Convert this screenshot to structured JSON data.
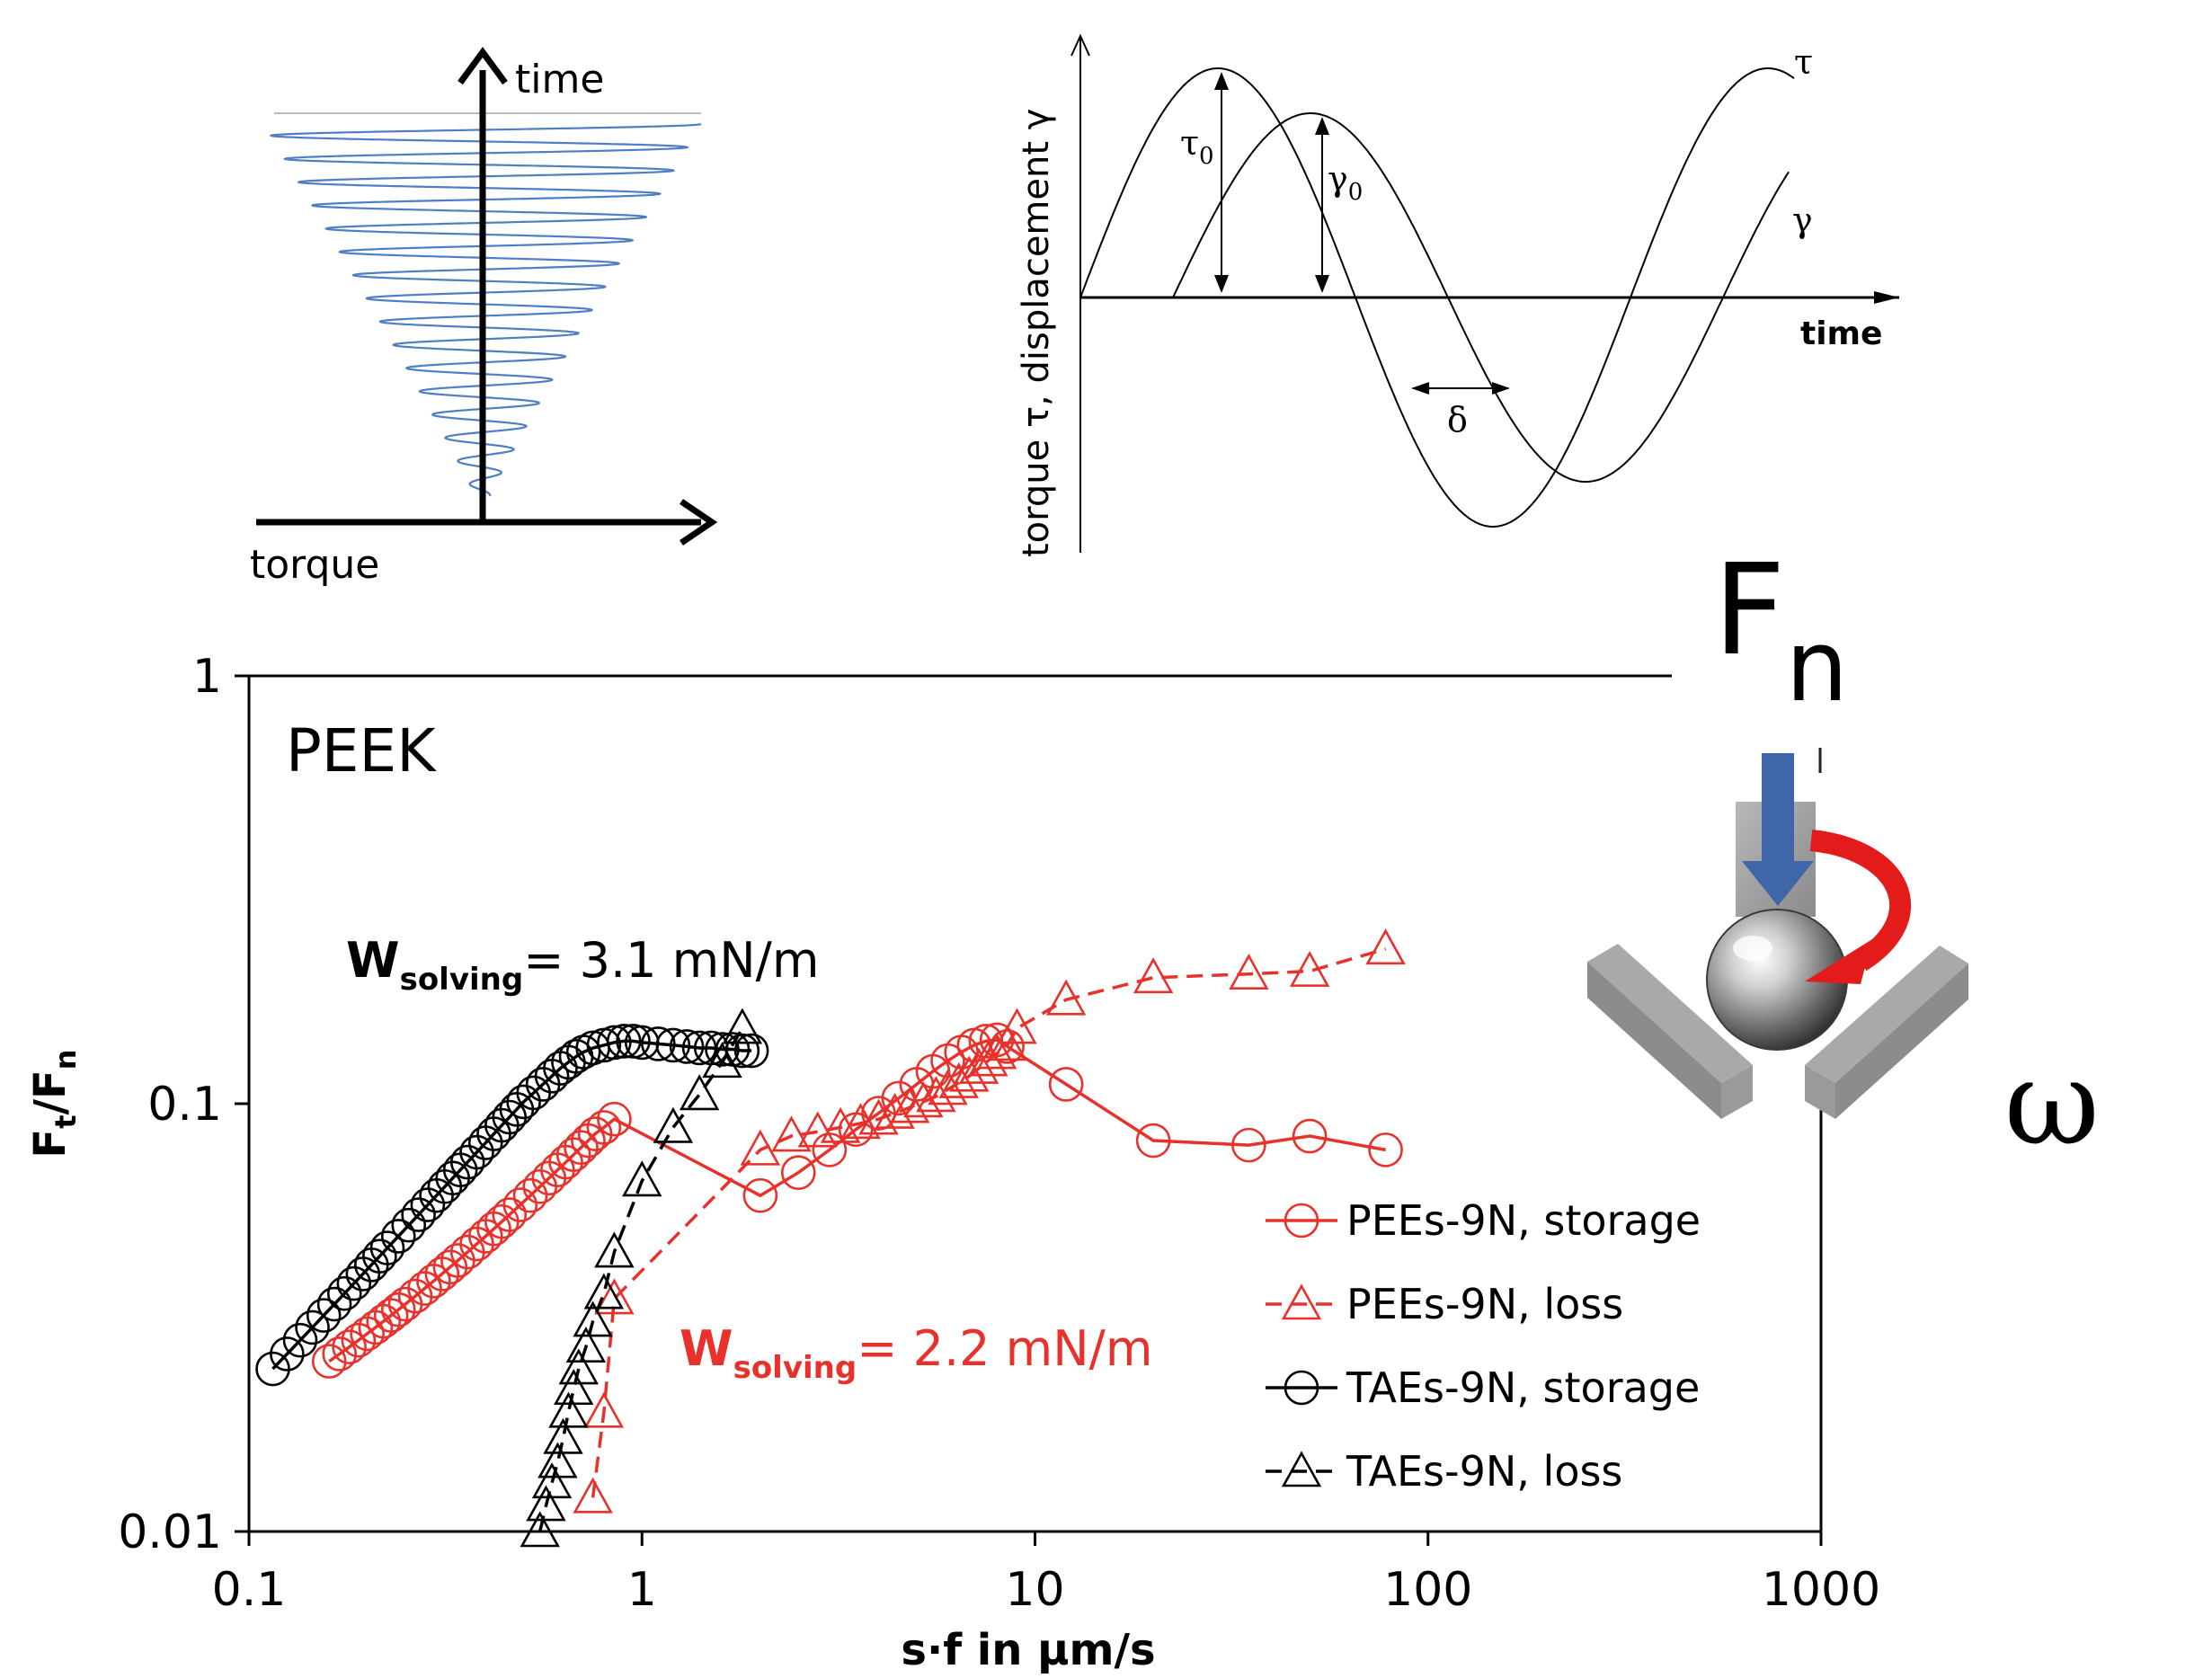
{
  "sweep_schematic": {
    "time_label": "time",
    "torque_label": "torque"
  },
  "oscillation_schematic": {
    "y_label": "torque τ, displacement γ",
    "time_label": "time",
    "tau_label": "τ",
    "gamma_label": "γ",
    "tau0_label": "τ",
    "tau0_sub": "0",
    "gamma0_label": "γ",
    "gamma0_sub": "0",
    "delta_label": "δ"
  },
  "setup_schematic": {
    "force_label": "F",
    "force_sub": "n",
    "omega_label": "ω"
  },
  "chart_data": {
    "type": "line",
    "panel_label": "PEEK",
    "x_scale": "log",
    "y_scale": "log",
    "xlim": [
      0.1,
      1000
    ],
    "ylim": [
      0.01,
      1
    ],
    "xlabel": "s·f in µm/s",
    "ylabel_main": "F",
    "ylabel_sub1": "t",
    "ylabel_mid": "/F",
    "ylabel_sub2": "n",
    "x_ticks": [
      0.1,
      1,
      10,
      100,
      1000
    ],
    "x_tick_labels": [
      "0.1",
      "1",
      "10",
      "100",
      "1000"
    ],
    "y_ticks": [
      0.01,
      0.1,
      1
    ],
    "y_tick_labels": [
      "0.01",
      "0.1",
      "1"
    ],
    "legend_position": "bottom-right",
    "annotations": [
      {
        "text_main": "W",
        "text_sub": "solving",
        "text_rest": "= 3.1 mN/m",
        "color": "#000000"
      },
      {
        "text_main": "W",
        "text_sub": "solving",
        "text_rest": "= 2.2 mN/m",
        "color": "#e8312b"
      }
    ],
    "series": [
      {
        "name": "PEEs-9N, storage",
        "color": "#e8312b",
        "marker": "circle",
        "dash": false,
        "x": [
          0.16,
          0.17,
          0.18,
          0.19,
          0.2,
          0.21,
          0.22,
          0.23,
          0.24,
          0.25,
          0.265,
          0.28,
          0.295,
          0.31,
          0.325,
          0.34,
          0.36,
          0.38,
          0.4,
          0.42,
          0.44,
          0.46,
          0.49,
          0.52,
          0.55,
          0.58,
          0.61,
          0.64,
          0.67,
          0.7,
          0.73,
          0.76,
          0.8,
          0.85,
          2.0,
          2.5,
          3.0,
          3.5,
          4.0,
          4.5,
          5.0,
          5.5,
          6.0,
          6.5,
          7.0,
          7.5,
          8.0,
          8.5,
          12,
          20,
          35,
          50,
          78
        ],
        "y": [
          0.025,
          0.026,
          0.027,
          0.028,
          0.029,
          0.03,
          0.031,
          0.032,
          0.033,
          0.034,
          0.0355,
          0.037,
          0.0385,
          0.04,
          0.0415,
          0.043,
          0.045,
          0.047,
          0.049,
          0.051,
          0.053,
          0.055,
          0.058,
          0.061,
          0.064,
          0.067,
          0.07,
          0.073,
          0.076,
          0.079,
          0.082,
          0.085,
          0.088,
          0.092,
          0.061,
          0.069,
          0.078,
          0.087,
          0.095,
          0.103,
          0.111,
          0.119,
          0.126,
          0.132,
          0.137,
          0.14,
          0.141,
          0.136,
          0.111,
          0.082,
          0.08,
          0.084,
          0.078
        ]
      },
      {
        "name": "PEEs-9N, loss",
        "color": "#e8312b",
        "marker": "triangle",
        "dash": true,
        "x": [
          0.75,
          0.8,
          0.85,
          2.0,
          2.4,
          2.8,
          3.2,
          3.6,
          4.0,
          4.4,
          4.8,
          5.2,
          5.6,
          6.0,
          6.4,
          6.8,
          7.2,
          7.6,
          8.0,
          8.5,
          9.0,
          12,
          20,
          35,
          50,
          78
        ],
        "y": [
          0.012,
          0.019,
          0.035,
          0.078,
          0.084,
          0.086,
          0.088,
          0.09,
          0.092,
          0.095,
          0.098,
          0.101,
          0.104,
          0.108,
          0.112,
          0.116,
          0.121,
          0.126,
          0.131,
          0.137,
          0.15,
          0.175,
          0.197,
          0.201,
          0.204,
          0.23
        ]
      },
      {
        "name": "TAEs-9N, storage",
        "color": "#000000",
        "marker": "circle",
        "dash": false,
        "x": [
          0.115,
          0.125,
          0.135,
          0.145,
          0.155,
          0.165,
          0.175,
          0.185,
          0.195,
          0.205,
          0.215,
          0.225,
          0.24,
          0.255,
          0.27,
          0.285,
          0.3,
          0.315,
          0.33,
          0.345,
          0.36,
          0.38,
          0.4,
          0.42,
          0.44,
          0.46,
          0.48,
          0.5,
          0.53,
          0.56,
          0.59,
          0.62,
          0.65,
          0.68,
          0.71,
          0.75,
          0.8,
          0.85,
          0.9,
          0.95,
          1.0,
          1.1,
          1.2,
          1.3,
          1.4,
          1.5,
          1.6,
          1.7,
          1.8,
          1.9
        ],
        "y": [
          0.024,
          0.026,
          0.028,
          0.03,
          0.032,
          0.034,
          0.036,
          0.038,
          0.04,
          0.042,
          0.044,
          0.046,
          0.049,
          0.052,
          0.055,
          0.058,
          0.061,
          0.064,
          0.067,
          0.07,
          0.073,
          0.077,
          0.081,
          0.085,
          0.089,
          0.093,
          0.097,
          0.101,
          0.106,
          0.111,
          0.116,
          0.121,
          0.125,
          0.129,
          0.132,
          0.135,
          0.137,
          0.139,
          0.14,
          0.14,
          0.139,
          0.138,
          0.137,
          0.136,
          0.135,
          0.135,
          0.134,
          0.134,
          0.133,
          0.133
        ]
      },
      {
        "name": "TAEs-9N, loss",
        "color": "#000000",
        "marker": "triangle",
        "dash": true,
        "x": [
          0.55,
          0.57,
          0.59,
          0.61,
          0.63,
          0.65,
          0.67,
          0.69,
          0.72,
          0.75,
          0.8,
          0.85,
          1.0,
          1.2,
          1.4,
          1.6,
          1.8
        ],
        "y": [
          0.01,
          0.0115,
          0.013,
          0.0145,
          0.0165,
          0.019,
          0.0215,
          0.024,
          0.027,
          0.031,
          0.036,
          0.045,
          0.066,
          0.088,
          0.105,
          0.125,
          0.15
        ]
      }
    ]
  }
}
